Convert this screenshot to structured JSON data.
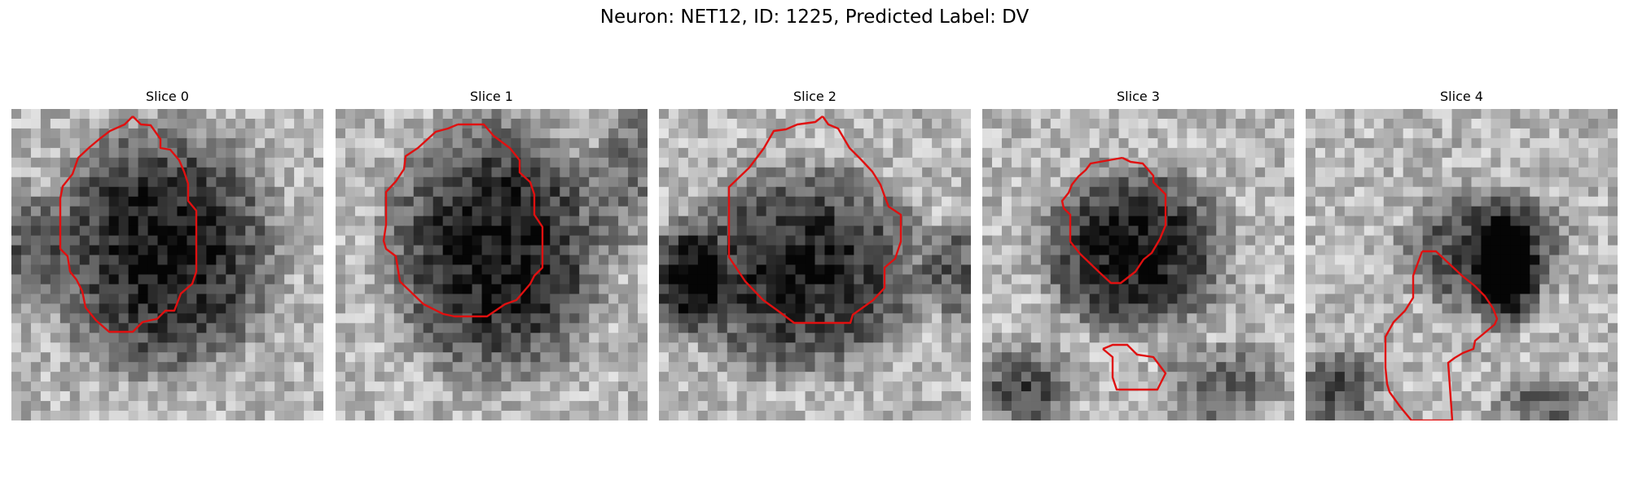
{
  "figure": {
    "title": "Neuron: NET12, ID: 1225, Predicted Label: DV",
    "contour_color": "#e01010",
    "colormap": "gray",
    "panels": [
      {
        "title": "Slice 0"
      },
      {
        "title": "Slice 1"
      },
      {
        "title": "Slice 2"
      },
      {
        "title": "Slice 3"
      },
      {
        "title": "Slice 4"
      }
    ]
  }
}
